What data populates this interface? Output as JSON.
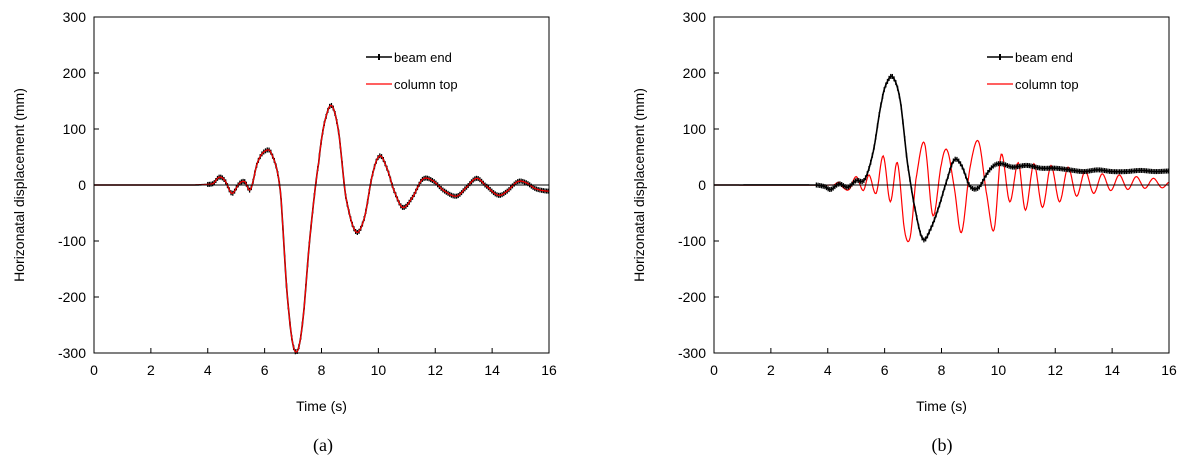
{
  "chart_data": [
    {
      "panel": "a",
      "type": "line",
      "caption": "(a)",
      "xlabel": "Time (s)",
      "ylabel": "Horizonatal displacement (mm)",
      "xlim": [
        0,
        16
      ],
      "ylim": [
        -300,
        300
      ],
      "xticks": [
        "0",
        "2",
        "4",
        "6",
        "8",
        "10",
        "12",
        "14",
        "16"
      ],
      "yticks": [
        "-300",
        "-200",
        "-100",
        "0",
        "100",
        "200",
        "300"
      ],
      "grid": false,
      "legend_position": "top-right",
      "series": [
        {
          "name": "beam end",
          "color": "#000000",
          "marker": "dash",
          "points": [
            [
              0,
              0
            ],
            [
              3.5,
              0
            ],
            [
              4.0,
              1
            ],
            [
              4.2,
              3
            ],
            [
              4.4,
              14
            ],
            [
              4.6,
              8
            ],
            [
              4.85,
              -15
            ],
            [
              5.1,
              2
            ],
            [
              5.3,
              6
            ],
            [
              5.5,
              -8
            ],
            [
              5.75,
              40
            ],
            [
              6.0,
              60
            ],
            [
              6.25,
              55
            ],
            [
              6.55,
              -10
            ],
            [
              6.8,
              -200
            ],
            [
              7.05,
              -295
            ],
            [
              7.3,
              -260
            ],
            [
              7.6,
              -90
            ],
            [
              7.9,
              40
            ],
            [
              8.1,
              110
            ],
            [
              8.35,
              142
            ],
            [
              8.6,
              95
            ],
            [
              8.85,
              -20
            ],
            [
              9.2,
              -83
            ],
            [
              9.5,
              -60
            ],
            [
              9.8,
              20
            ],
            [
              10.05,
              52
            ],
            [
              10.3,
              30
            ],
            [
              10.55,
              -10
            ],
            [
              10.85,
              -40
            ],
            [
              11.2,
              -22
            ],
            [
              11.55,
              10
            ],
            [
              11.9,
              8
            ],
            [
              12.3,
              -10
            ],
            [
              12.75,
              -20
            ],
            [
              13.1,
              -4
            ],
            [
              13.45,
              12
            ],
            [
              13.75,
              0
            ],
            [
              14.2,
              -18
            ],
            [
              14.5,
              -12
            ],
            [
              14.9,
              6
            ],
            [
              15.2,
              4
            ],
            [
              15.5,
              -6
            ],
            [
              15.8,
              -10
            ],
            [
              16.0,
              -11
            ]
          ]
        },
        {
          "name": "column top",
          "color": "#ff0000",
          "marker": "none",
          "points": [
            [
              0,
              0
            ],
            [
              3.5,
              0
            ],
            [
              4.0,
              1
            ],
            [
              4.2,
              3
            ],
            [
              4.4,
              14
            ],
            [
              4.6,
              8
            ],
            [
              4.85,
              -15
            ],
            [
              5.1,
              2
            ],
            [
              5.3,
              6
            ],
            [
              5.5,
              -8
            ],
            [
              5.75,
              40
            ],
            [
              6.0,
              60
            ],
            [
              6.25,
              55
            ],
            [
              6.55,
              -10
            ],
            [
              6.8,
              -200
            ],
            [
              7.05,
              -295
            ],
            [
              7.3,
              -260
            ],
            [
              7.6,
              -90
            ],
            [
              7.9,
              40
            ],
            [
              8.1,
              110
            ],
            [
              8.35,
              142
            ],
            [
              8.6,
              95
            ],
            [
              8.85,
              -20
            ],
            [
              9.2,
              -83
            ],
            [
              9.5,
              -60
            ],
            [
              9.8,
              20
            ],
            [
              10.05,
              52
            ],
            [
              10.3,
              30
            ],
            [
              10.55,
              -10
            ],
            [
              10.85,
              -40
            ],
            [
              11.2,
              -22
            ],
            [
              11.55,
              10
            ],
            [
              11.9,
              8
            ],
            [
              12.3,
              -10
            ],
            [
              12.75,
              -20
            ],
            [
              13.1,
              -4
            ],
            [
              13.45,
              12
            ],
            [
              13.75,
              0
            ],
            [
              14.2,
              -18
            ],
            [
              14.5,
              -12
            ],
            [
              14.9,
              6
            ],
            [
              15.2,
              4
            ],
            [
              15.5,
              -6
            ],
            [
              15.8,
              -10
            ],
            [
              16.0,
              -11
            ]
          ]
        }
      ]
    },
    {
      "panel": "b",
      "type": "line",
      "caption": "(b)",
      "xlabel": "Time (s)",
      "ylabel": "Horizonatal displacement (mm)",
      "xlim": [
        0,
        16
      ],
      "ylim": [
        -300,
        300
      ],
      "xticks": [
        "0",
        "2",
        "4",
        "6",
        "8",
        "10",
        "12",
        "14",
        "16"
      ],
      "yticks": [
        "-300",
        "-200",
        "-100",
        "0",
        "100",
        "200",
        "300"
      ],
      "grid": false,
      "legend_position": "top-right",
      "series": [
        {
          "name": "beam end",
          "color": "#000000",
          "marker": "dash",
          "points": [
            [
              0,
              0
            ],
            [
              3.6,
              0
            ],
            [
              3.9,
              -3
            ],
            [
              4.1,
              -8
            ],
            [
              4.4,
              2
            ],
            [
              4.7,
              -4
            ],
            [
              5.0,
              8
            ],
            [
              5.3,
              10
            ],
            [
              5.6,
              60
            ],
            [
              5.9,
              150
            ],
            [
              6.1,
              185
            ],
            [
              6.3,
              192
            ],
            [
              6.55,
              150
            ],
            [
              6.8,
              40
            ],
            [
              7.1,
              -50
            ],
            [
              7.35,
              -97
            ],
            [
              7.6,
              -80
            ],
            [
              7.9,
              -40
            ],
            [
              8.2,
              10
            ],
            [
              8.45,
              45
            ],
            [
              8.7,
              35
            ],
            [
              9.0,
              -2
            ],
            [
              9.3,
              -5
            ],
            [
              9.6,
              20
            ],
            [
              9.85,
              35
            ],
            [
              10.1,
              38
            ],
            [
              10.5,
              32
            ],
            [
              11.0,
              35
            ],
            [
              11.5,
              30
            ],
            [
              12.0,
              30
            ],
            [
              12.5,
              27
            ],
            [
              13.0,
              24
            ],
            [
              13.5,
              27
            ],
            [
              14.0,
              24
            ],
            [
              14.5,
              24
            ],
            [
              15.0,
              26
            ],
            [
              15.5,
              24
            ],
            [
              16.0,
              25
            ]
          ]
        },
        {
          "name": "column top",
          "color": "#ff0000",
          "marker": "none",
          "points": [
            [
              0,
              0
            ],
            [
              4.2,
              0
            ],
            [
              4.4,
              5
            ],
            [
              4.55,
              -5
            ],
            [
              4.75,
              -8
            ],
            [
              5.0,
              15
            ],
            [
              5.25,
              -10
            ],
            [
              5.45,
              18
            ],
            [
              5.7,
              -15
            ],
            [
              5.95,
              52
            ],
            [
              6.2,
              -30
            ],
            [
              6.45,
              40
            ],
            [
              6.7,
              -80
            ],
            [
              6.9,
              -93
            ],
            [
              7.1,
              10
            ],
            [
              7.4,
              75
            ],
            [
              7.7,
              -55
            ],
            [
              8.0,
              38
            ],
            [
              8.2,
              62
            ],
            [
              8.45,
              -5
            ],
            [
              8.7,
              -85
            ],
            [
              9.0,
              30
            ],
            [
              9.3,
              78
            ],
            [
              9.6,
              -20
            ],
            [
              9.85,
              -80
            ],
            [
              10.1,
              55
            ],
            [
              10.4,
              -30
            ],
            [
              10.7,
              40
            ],
            [
              10.95,
              -45
            ],
            [
              11.25,
              38
            ],
            [
              11.55,
              -40
            ],
            [
              11.85,
              35
            ],
            [
              12.15,
              -30
            ],
            [
              12.45,
              32
            ],
            [
              12.75,
              -20
            ],
            [
              13.05,
              25
            ],
            [
              13.35,
              -15
            ],
            [
              13.65,
              20
            ],
            [
              13.95,
              -10
            ],
            [
              14.25,
              18
            ],
            [
              14.55,
              -8
            ],
            [
              14.85,
              15
            ],
            [
              15.15,
              -6
            ],
            [
              15.45,
              12
            ],
            [
              15.75,
              -5
            ],
            [
              16.0,
              5
            ]
          ]
        }
      ]
    }
  ]
}
